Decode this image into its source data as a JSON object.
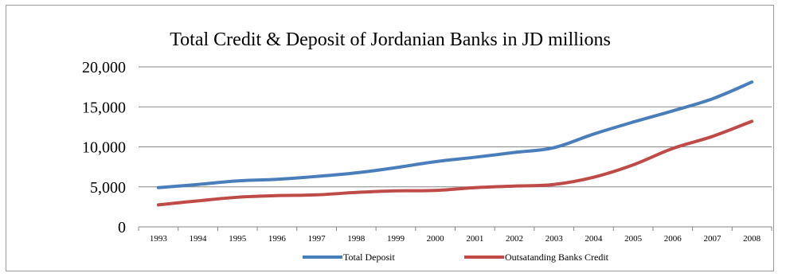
{
  "chart_data": {
    "type": "line",
    "title": "Total Credit & Deposit of Jordanian Banks in JD millions",
    "xlabel": "",
    "ylabel": "",
    "categories": [
      "1993",
      "1994",
      "1995",
      "1996",
      "1997",
      "1998",
      "1999",
      "2000",
      "2001",
      "2002",
      "2003",
      "2004",
      "2005",
      "2006",
      "2007",
      "2008"
    ],
    "y_ticks": [
      "0",
      "5,000",
      "10,000",
      "15,000",
      "20,000"
    ],
    "ylim": [
      0,
      20000
    ],
    "grid": true,
    "legend_position": "bottom",
    "series": [
      {
        "name": "Total Deposit",
        "color": "#4a7ebb",
        "values": [
          4900,
          5300,
          5750,
          5950,
          6300,
          6750,
          7400,
          8150,
          8700,
          9300,
          9900,
          11600,
          13100,
          14500,
          16000,
          18100
        ]
      },
      {
        "name": "Outsatanding Banks Credit",
        "color": "#be4b48",
        "values": [
          2750,
          3250,
          3700,
          3900,
          4000,
          4300,
          4500,
          4550,
          4900,
          5100,
          5300,
          6200,
          7750,
          9800,
          11300,
          13200
        ]
      }
    ]
  }
}
